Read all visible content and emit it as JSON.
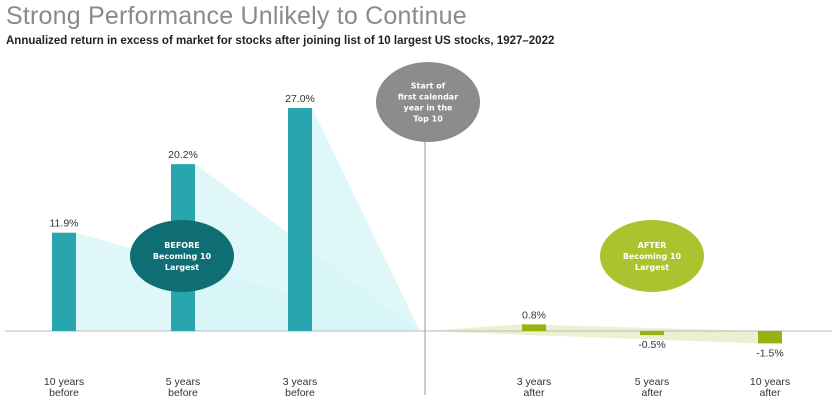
{
  "header": {
    "title": "Strong Performance Unlikely to Continue",
    "subtitle": "Annualized return in excess of market for stocks after joining list of 10 largest US stocks, 1927–2022"
  },
  "chart_data": {
    "type": "bar",
    "title": "Strong Performance Unlikely to Continue",
    "categories": [
      [
        "10 years",
        "before"
      ],
      [
        "5 years",
        "before"
      ],
      [
        "3 years",
        "before"
      ],
      [
        "3 years",
        "after"
      ],
      [
        "5 years",
        "after"
      ],
      [
        "10 years",
        "after"
      ]
    ],
    "values": [
      11.9,
      20.2,
      27.0,
      0.8,
      -0.5,
      -1.5
    ],
    "value_labels": [
      "11.9%",
      "20.2%",
      "27.0%",
      "0.8%",
      "-0.5%",
      "-1.5%"
    ],
    "unit": "%",
    "colors": {
      "before": "#29a5b0",
      "after": "#97b20e",
      "before_fan": "#d6f4f7",
      "after_fan": "#e6ecc4",
      "before_bubble": "#0f6e73",
      "after_bubble": "#a9c42e",
      "center_bubble": "#8c8c8c",
      "divider": "#9a9a9a"
    },
    "annotations": {
      "center": [
        "Start of",
        "first calendar",
        "year in the",
        "Top 10"
      ],
      "before": [
        "BEFORE",
        "Becoming 10",
        "Largest"
      ],
      "after": [
        "AFTER",
        "Becoming 10",
        "Largest"
      ]
    },
    "grid": false,
    "legend": "none"
  }
}
